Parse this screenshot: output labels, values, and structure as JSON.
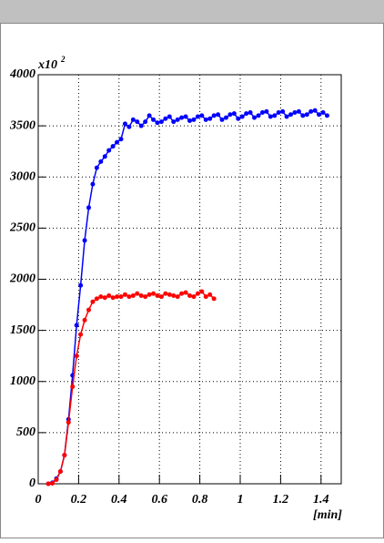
{
  "chart_data": {
    "type": "line",
    "x_label": "[min]",
    "y_multiplier": "x10",
    "y_exponent": "2",
    "xlim": [
      0,
      1.5
    ],
    "xticks": [
      0,
      0.2,
      0.4,
      0.6,
      0.8,
      1,
      1.2,
      1.4
    ],
    "ylim": [
      0,
      4000
    ],
    "yticks": [
      0,
      500,
      1000,
      1500,
      2000,
      2500,
      3000,
      3500,
      4000
    ],
    "grid": true,
    "series": [
      {
        "color": "#0000ff",
        "x": [
          0.05,
          0.07,
          0.09,
          0.11,
          0.13,
          0.15,
          0.17,
          0.19,
          0.21,
          0.23,
          0.25,
          0.27,
          0.29,
          0.31,
          0.33,
          0.35,
          0.37,
          0.39,
          0.41,
          0.43,
          0.45,
          0.47,
          0.49,
          0.51,
          0.53,
          0.55,
          0.57,
          0.59,
          0.61,
          0.63,
          0.65,
          0.67,
          0.69,
          0.71,
          0.73,
          0.75,
          0.77,
          0.79,
          0.81,
          0.83,
          0.85,
          0.87,
          0.89,
          0.91,
          0.93,
          0.95,
          0.97,
          0.99,
          1.01,
          1.03,
          1.05,
          1.07,
          1.09,
          1.11,
          1.13,
          1.15,
          1.17,
          1.19,
          1.21,
          1.23,
          1.25,
          1.27,
          1.29,
          1.31,
          1.33,
          1.35,
          1.37,
          1.39,
          1.41,
          1.43
        ],
        "values": [
          0,
          10,
          50,
          120,
          280,
          630,
          1060,
          1550,
          1940,
          2380,
          2700,
          2930,
          3090,
          3150,
          3200,
          3260,
          3300,
          3340,
          3370,
          3520,
          3490,
          3560,
          3540,
          3500,
          3540,
          3600,
          3560,
          3530,
          3540,
          3570,
          3590,
          3540,
          3560,
          3580,
          3590,
          3550,
          3560,
          3590,
          3600,
          3560,
          3570,
          3600,
          3610,
          3560,
          3580,
          3610,
          3620,
          3570,
          3590,
          3620,
          3630,
          3580,
          3600,
          3630,
          3640,
          3590,
          3600,
          3630,
          3640,
          3590,
          3610,
          3630,
          3640,
          3600,
          3610,
          3640,
          3650,
          3610,
          3630,
          3600
        ]
      },
      {
        "color": "#ff0000",
        "x": [
          0.05,
          0.07,
          0.09,
          0.11,
          0.13,
          0.15,
          0.17,
          0.19,
          0.21,
          0.23,
          0.25,
          0.27,
          0.29,
          0.31,
          0.33,
          0.35,
          0.37,
          0.39,
          0.41,
          0.43,
          0.45,
          0.47,
          0.49,
          0.51,
          0.53,
          0.55,
          0.57,
          0.59,
          0.61,
          0.63,
          0.65,
          0.67,
          0.69,
          0.71,
          0.73,
          0.75,
          0.77,
          0.79,
          0.81,
          0.83,
          0.85,
          0.87
        ],
        "values": [
          0,
          5,
          40,
          120,
          280,
          600,
          950,
          1250,
          1460,
          1600,
          1700,
          1780,
          1810,
          1830,
          1820,
          1840,
          1820,
          1830,
          1830,
          1850,
          1830,
          1840,
          1860,
          1840,
          1830,
          1850,
          1860,
          1840,
          1830,
          1860,
          1850,
          1840,
          1830,
          1860,
          1870,
          1840,
          1830,
          1860,
          1880,
          1830,
          1850,
          1810
        ]
      }
    ]
  }
}
